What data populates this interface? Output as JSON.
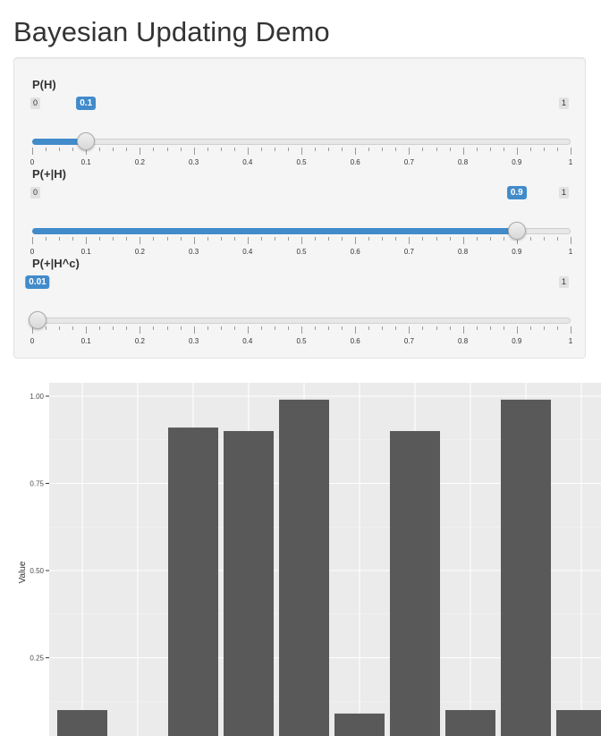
{
  "page": {
    "title": "Bayesian Updating Demo"
  },
  "sliders": [
    {
      "label": "P(H)",
      "min_label": "0",
      "max_label": "1",
      "value": 0.1,
      "value_label": "0.1"
    },
    {
      "label": "P(+|H)",
      "min_label": "0",
      "max_label": "1",
      "value": 0.9,
      "value_label": "0.9"
    },
    {
      "label": "P(+|H^c)",
      "min_label": "0",
      "max_label": "1",
      "value": 0.01,
      "value_label": "0.01"
    }
  ],
  "slider_ticks": [
    "0",
    "0.1",
    "0.2",
    "0.3",
    "0.4",
    "0.5",
    "0.6",
    "0.7",
    "0.8",
    "0.9",
    "1"
  ],
  "colors": {
    "accent": "#428bca",
    "panel_bg": "#ebebeb",
    "bar_fill": "#595959",
    "grid": "#ffffff"
  },
  "chart_data": {
    "type": "bar",
    "title": "",
    "xlabel": "",
    "ylabel": "Value",
    "ylim": [
      0,
      1.05
    ],
    "yticks": [
      "0.25",
      "0.50",
      "0.75",
      "1.00"
    ],
    "ytick_values": [
      0.25,
      0.5,
      0.75,
      1.0
    ],
    "values": [
      0.1,
      0,
      0.91,
      0.9,
      0.99,
      0.09,
      0.9,
      0.1,
      0.99,
      0.1
    ],
    "grid": true,
    "legend": "none"
  }
}
